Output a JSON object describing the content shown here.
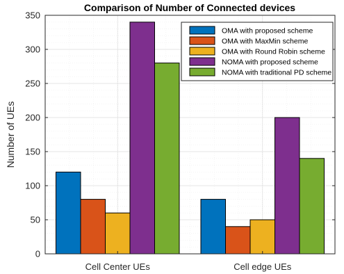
{
  "chart_data": {
    "type": "bar",
    "title": "Comparison of Number of Connected devices",
    "ylabel": "Number of UEs",
    "xlabel": "",
    "categories": [
      "Cell Center UEs",
      "Cell edge UEs"
    ],
    "ylim": [
      0,
      350
    ],
    "yticks": [
      0,
      50,
      100,
      150,
      200,
      250,
      300,
      350
    ],
    "grid": true,
    "legend_position": "top-right",
    "series": [
      {
        "name": "OMA with proposed scheme",
        "color": "#0072BD",
        "values": [
          120,
          80
        ]
      },
      {
        "name": "OMA with MaxMin scheme",
        "color": "#D95319",
        "values": [
          80,
          40
        ]
      },
      {
        "name": "OMA with Round Robin scheme",
        "color": "#EDB120",
        "values": [
          60,
          50
        ]
      },
      {
        "name": "NOMA with proposed scheme",
        "color": "#7E2F8E",
        "values": [
          340,
          200
        ]
      },
      {
        "name": "NOMA with traditional PD scheme",
        "color": "#77AC30",
        "values": [
          280,
          140
        ]
      }
    ]
  }
}
